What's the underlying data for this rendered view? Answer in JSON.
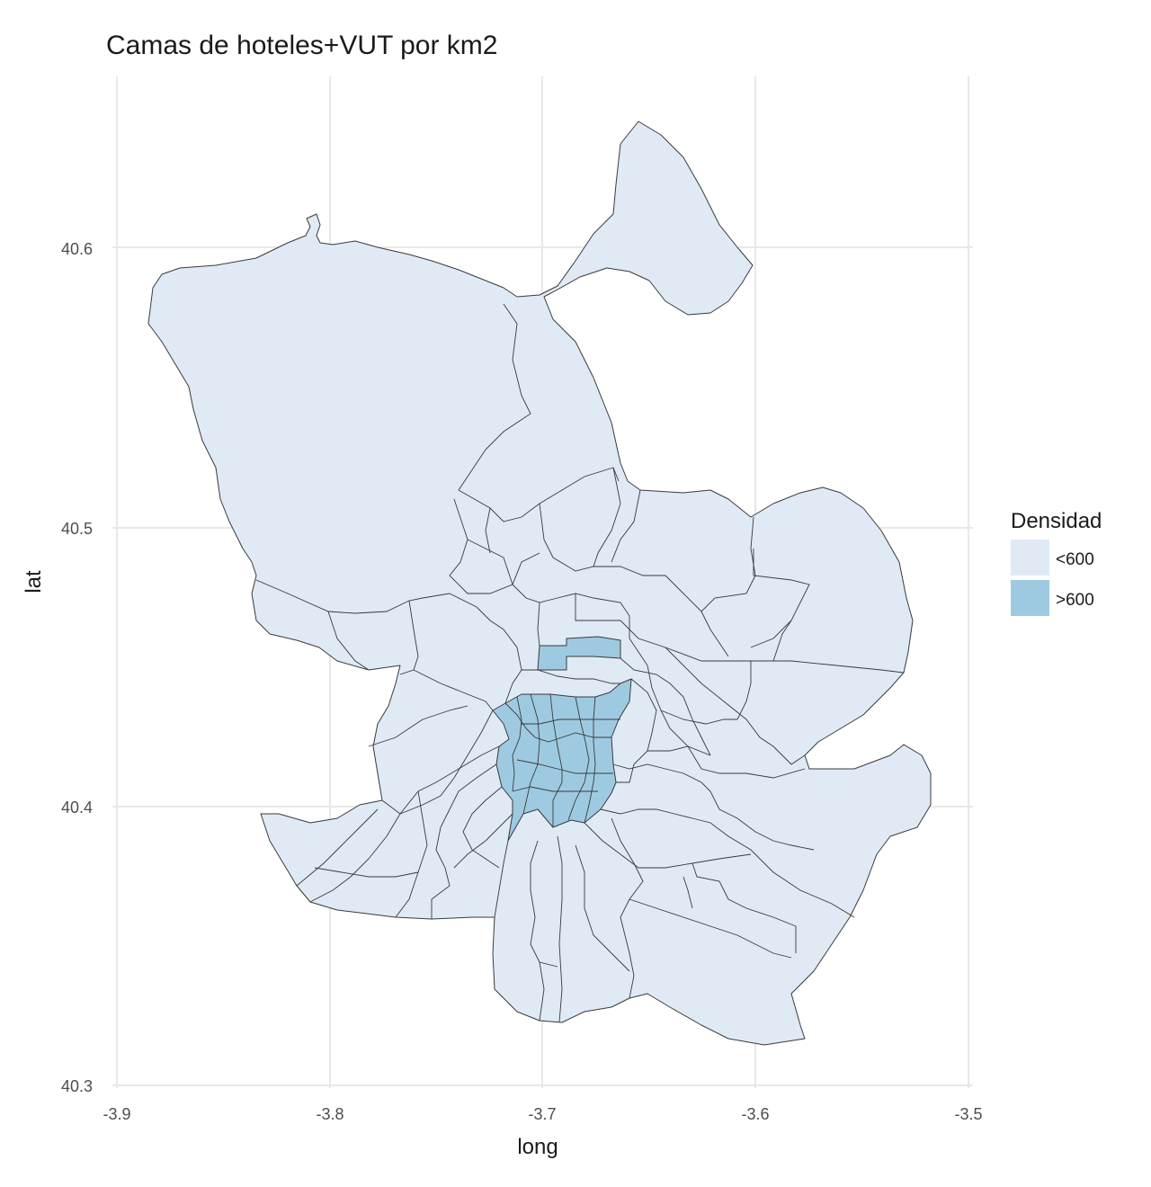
{
  "chart_data": {
    "type": "choropleth-map",
    "title": "Camas de hoteles+VUT por km2",
    "xlabel": "long",
    "ylabel": "lat",
    "xlim": [
      -3.9,
      -3.5
    ],
    "ylim": [
      40.3,
      40.6
    ],
    "x_ticks": [
      "-3.9",
      "-3.8",
      "-3.7",
      "-3.6",
      "-3.5"
    ],
    "y_ticks": [
      "40.3",
      "40.4",
      "40.5",
      "40.6"
    ],
    "grid": true,
    "legend": {
      "title": "Densidad",
      "position": "right",
      "entries": [
        {
          "label": "<600",
          "color": "#dfeaf5"
        },
        {
          "label": ">600",
          "color": "#9ecae1"
        }
      ]
    }
  },
  "colors": {
    "low": "#dfeaf5",
    "high": "#9ecae1",
    "border": "#3a3a3a",
    "grid": "#e8e8e8"
  }
}
